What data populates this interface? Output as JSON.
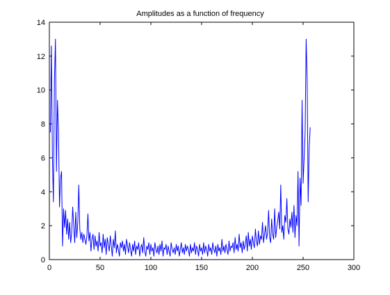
{
  "chart_data": {
    "type": "line",
    "title": "Amplitudes as a function of frequency",
    "xlabel": "",
    "ylabel": "",
    "xlim": [
      0,
      300
    ],
    "ylim": [
      0,
      14
    ],
    "xticks": [
      0,
      50,
      100,
      150,
      200,
      250,
      300
    ],
    "yticks": [
      0,
      2,
      4,
      6,
      8,
      10,
      12,
      14
    ],
    "grid": false,
    "series": [
      {
        "color": "#0000ff",
        "x": [
          1,
          2,
          3,
          4,
          5,
          6,
          7,
          8,
          9,
          10,
          11,
          12,
          13,
          14,
          15,
          16,
          17,
          18,
          19,
          20,
          21,
          22,
          23,
          24,
          25,
          26,
          27,
          28,
          29,
          30,
          31,
          32,
          33,
          34,
          35,
          36,
          37,
          38,
          39,
          40,
          41,
          42,
          43,
          44,
          45,
          46,
          47,
          48,
          49,
          50,
          51,
          52,
          53,
          54,
          55,
          56,
          57,
          58,
          59,
          60,
          61,
          62,
          63,
          64,
          65,
          66,
          67,
          68,
          69,
          70,
          71,
          72,
          73,
          74,
          75,
          76,
          77,
          78,
          79,
          80,
          81,
          82,
          83,
          84,
          85,
          86,
          87,
          88,
          89,
          90,
          91,
          92,
          93,
          94,
          95,
          96,
          97,
          98,
          99,
          100,
          101,
          102,
          103,
          104,
          105,
          106,
          107,
          108,
          109,
          110,
          111,
          112,
          113,
          114,
          115,
          116,
          117,
          118,
          119,
          120,
          121,
          122,
          123,
          124,
          125,
          126,
          127,
          128,
          129,
          130,
          131,
          132,
          133,
          134,
          135,
          136,
          137,
          138,
          139,
          140,
          141,
          142,
          143,
          144,
          145,
          146,
          147,
          148,
          149,
          150,
          151,
          152,
          153,
          154,
          155,
          156,
          157,
          158,
          159,
          160,
          161,
          162,
          163,
          164,
          165,
          166,
          167,
          168,
          169,
          170,
          171,
          172,
          173,
          174,
          175,
          176,
          177,
          178,
          179,
          180,
          181,
          182,
          183,
          184,
          185,
          186,
          187,
          188,
          189,
          190,
          191,
          192,
          193,
          194,
          195,
          196,
          197,
          198,
          199,
          200,
          201,
          202,
          203,
          204,
          205,
          206,
          207,
          208,
          209,
          210,
          211,
          212,
          213,
          214,
          215,
          216,
          217,
          218,
          219,
          220,
          221,
          222,
          223,
          224,
          225,
          226,
          227,
          228,
          229,
          230,
          231,
          232,
          233,
          234,
          235,
          236,
          237,
          238,
          239,
          240,
          241,
          242,
          243,
          244,
          245,
          246,
          247,
          248,
          249,
          250,
          251,
          252,
          253,
          254,
          255,
          256,
          257
        ],
        "y": [
          7.5,
          12.6,
          6.0,
          3.4,
          10.6,
          13.0,
          5.2,
          9.4,
          7.6,
          3.1,
          4.8,
          5.2,
          0.8,
          3.0,
          1.9,
          2.9,
          1.5,
          2.4,
          1.2,
          2.2,
          1.0,
          1.6,
          3.1,
          2.0,
          1.0,
          2.8,
          1.3,
          2.2,
          4.4,
          1.8,
          1.2,
          1.6,
          1.0,
          1.5,
          1.2,
          0.9,
          1.4,
          2.7,
          1.1,
          1.6,
          0.5,
          1.2,
          1.5,
          0.6,
          1.4,
          0.8,
          1.1,
          0.5,
          1.6,
          0.8,
          1.0,
          0.4,
          1.5,
          0.7,
          1.2,
          0.3,
          1.3,
          0.9,
          0.5,
          1.4,
          0.8,
          0.2,
          1.2,
          0.7,
          1.7,
          0.4,
          0.9,
          0.6,
          0.2,
          1.0,
          0.7,
          1.1,
          0.5,
          0.9,
          0.3,
          1.2,
          0.8,
          0.4,
          1.0,
          0.6,
          0.2,
          0.9,
          0.5,
          1.1,
          0.3,
          0.8,
          0.6,
          1.0,
          0.2,
          0.7,
          0.9,
          0.4,
          1.3,
          0.5,
          0.2,
          0.8,
          0.6,
          1.0,
          0.3,
          0.9,
          0.5,
          0.7,
          0.2,
          1.0,
          0.6,
          0.4,
          0.8,
          0.3,
          0.9,
          0.5,
          1.1,
          0.2,
          0.7,
          0.6,
          0.9,
          0.3,
          0.8,
          0.5,
          0.2,
          1.0,
          0.6,
          0.4,
          0.7,
          0.3,
          0.9,
          0.5,
          0.8,
          0.2,
          0.6,
          1.0,
          0.4,
          0.7,
          0.3,
          0.9,
          0.5,
          0.8,
          0.6,
          0.2,
          0.9,
          0.4,
          0.7,
          0.5,
          1.0,
          0.3,
          0.8,
          0.6,
          0.2,
          0.9,
          0.5,
          0.7,
          0.3,
          1.0,
          0.4,
          0.8,
          0.6,
          0.2,
          0.9,
          0.5,
          0.7,
          0.3,
          1.0,
          0.6,
          0.4,
          0.8,
          0.2,
          0.9,
          0.5,
          0.7,
          0.3,
          1.2,
          0.5,
          0.8,
          0.4,
          0.9,
          0.6,
          0.3,
          1.1,
          0.5,
          0.8,
          0.7,
          1.0,
          0.4,
          1.3,
          0.6,
          0.9,
          0.5,
          1.5,
          0.7,
          1.0,
          0.4,
          1.1,
          0.6,
          0.9,
          1.4,
          0.5,
          1.6,
          0.8,
          1.2,
          0.6,
          1.4,
          1.0,
          0.7,
          1.8,
          1.1,
          0.8,
          1.7,
          0.9,
          1.4,
          1.2,
          2.2,
          1.0,
          1.5,
          2.0,
          1.2,
          1.6,
          2.9,
          1.3,
          1.0,
          2.4,
          1.5,
          1.2,
          3.0,
          1.3,
          1.9,
          2.3,
          2.8,
          1.8,
          4.4,
          1.6,
          2.0,
          1.2,
          2.6,
          2.2,
          3.6,
          1.8,
          1.5,
          2.4,
          1.9,
          2.8,
          1.6,
          3.2,
          1.3,
          2.6,
          2.0,
          5.2,
          0.8,
          4.8,
          3.2,
          9.4,
          4.5,
          6.0,
          7.5,
          13.0,
          10.6,
          3.4,
          6.6,
          7.8
        ]
      }
    ]
  }
}
